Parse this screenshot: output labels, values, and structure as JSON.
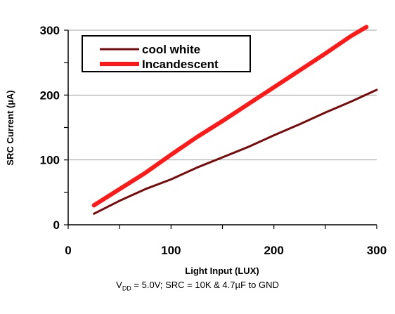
{
  "chart_data": {
    "type": "line",
    "xlabel": "Light Input (LUX)",
    "ylabel": "SRC Current (µA)",
    "xlim": [
      0,
      300
    ],
    "ylim": [
      0,
      300
    ],
    "xticks": [
      0,
      100,
      200,
      300
    ],
    "yticks": [
      0,
      100,
      200,
      300
    ],
    "grid": true,
    "legend_position": "top-left",
    "series": [
      {
        "name": "cool white",
        "color": "#7a0a0a",
        "x": [
          25,
          50,
          75,
          100,
          125,
          150,
          175,
          200,
          225,
          250,
          275,
          300
        ],
        "y": [
          17,
          37,
          55,
          70,
          88,
          104,
          120,
          138,
          155,
          173,
          190,
          208
        ]
      },
      {
        "name": "Incandescent",
        "color": "#ff1a1a",
        "x": [
          25,
          50,
          75,
          100,
          125,
          150,
          175,
          200,
          225,
          250,
          275,
          290
        ],
        "y": [
          30,
          55,
          80,
          108,
          135,
          160,
          186,
          212,
          238,
          264,
          291,
          305
        ]
      }
    ]
  },
  "footnote": {
    "v": "V",
    "dd": "DD",
    "rest": " = 5.0V; SRC = 10K & 4.7µF to GND"
  }
}
